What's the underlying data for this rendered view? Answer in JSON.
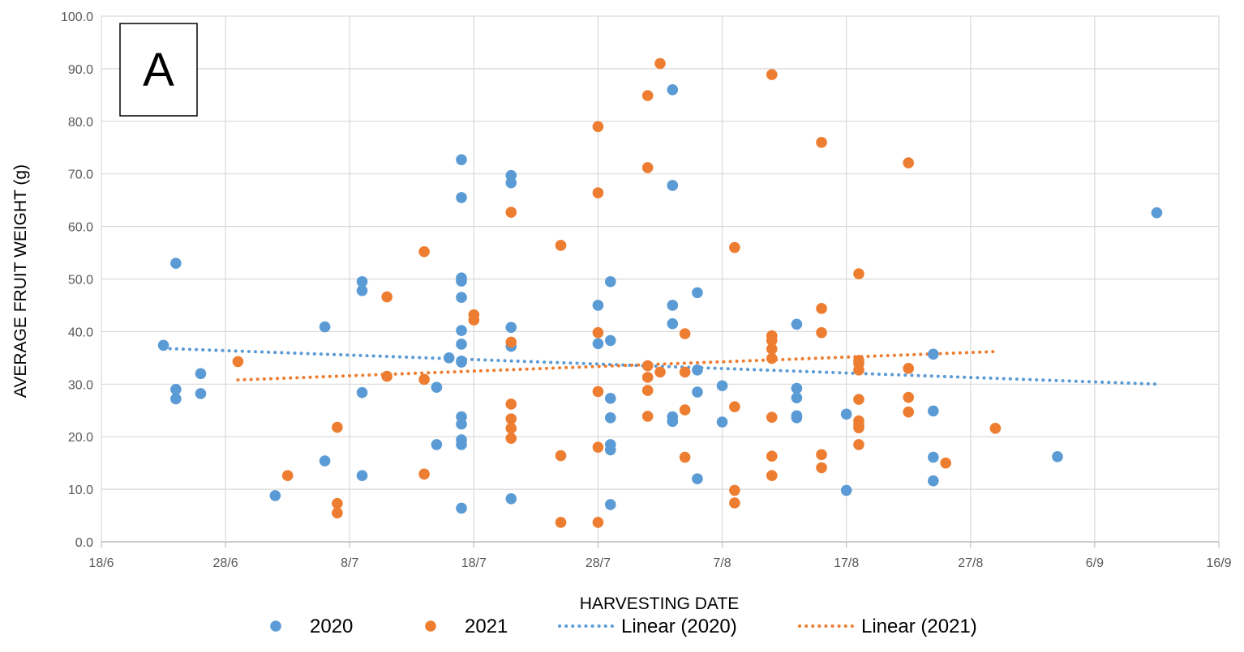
{
  "panel_label": "A",
  "chart_data": {
    "type": "scatter",
    "xlabel": "HARVESTING DATE",
    "ylabel": "AVERAGE FRUIT WEIGHT (g)",
    "xlim": [
      "18/6",
      "16/9"
    ],
    "ylim": [
      0,
      100
    ],
    "x_ticks": [
      "18/6",
      "28/6",
      "8/7",
      "18/7",
      "28/7",
      "7/8",
      "17/8",
      "27/8",
      "6/9",
      "16/9"
    ],
    "y_ticks": [
      "0.0",
      "10.0",
      "20.0",
      "30.0",
      "40.0",
      "50.0",
      "60.0",
      "70.0",
      "80.0",
      "90.0",
      "100.0"
    ],
    "grid": true,
    "legend_position": "bottom",
    "series": [
      {
        "name": "2020",
        "kind": "points",
        "color": "#5B9BD5",
        "points": [
          [
            "23/6",
            37.4
          ],
          [
            "24/6",
            53.0
          ],
          [
            "24/6",
            29.0
          ],
          [
            "24/6",
            27.2
          ],
          [
            "26/6",
            32.0
          ],
          [
            "26/6",
            28.2
          ],
          [
            "2/7",
            8.8
          ],
          [
            "6/7",
            40.9
          ],
          [
            "6/7",
            15.4
          ],
          [
            "9/7",
            49.5
          ],
          [
            "9/7",
            47.8
          ],
          [
            "9/7",
            28.4
          ],
          [
            "9/7",
            12.6
          ],
          [
            "15/7",
            29.4
          ],
          [
            "15/7",
            18.5
          ],
          [
            "16/7",
            35.0
          ],
          [
            "17/7",
            72.7
          ],
          [
            "17/7",
            65.5
          ],
          [
            "17/7",
            50.2
          ],
          [
            "17/7",
            49.6
          ],
          [
            "17/7",
            46.5
          ],
          [
            "17/7",
            40.2
          ],
          [
            "17/7",
            37.6
          ],
          [
            "17/7",
            34.4
          ],
          [
            "17/7",
            34.2
          ],
          [
            "17/7",
            23.8
          ],
          [
            "17/7",
            22.4
          ],
          [
            "17/7",
            19.4
          ],
          [
            "17/7",
            18.5
          ],
          [
            "17/7",
            6.4
          ],
          [
            "21/7",
            69.7
          ],
          [
            "21/7",
            68.3
          ],
          [
            "21/7",
            40.8
          ],
          [
            "21/7",
            37.2
          ],
          [
            "21/7",
            8.2
          ],
          [
            "28/7",
            45.0
          ],
          [
            "28/7",
            37.7
          ],
          [
            "29/7",
            49.5
          ],
          [
            "29/7",
            38.3
          ],
          [
            "29/7",
            27.3
          ],
          [
            "29/7",
            23.6
          ],
          [
            "29/7",
            18.5
          ],
          [
            "29/7",
            17.5
          ],
          [
            "29/7",
            7.1
          ],
          [
            "3/8",
            86.0
          ],
          [
            "3/8",
            67.8
          ],
          [
            "3/8",
            45.0
          ],
          [
            "3/8",
            41.5
          ],
          [
            "3/8",
            23.8
          ],
          [
            "3/8",
            22.9
          ],
          [
            "5/8",
            47.4
          ],
          [
            "5/8",
            32.7
          ],
          [
            "5/8",
            28.5
          ],
          [
            "5/8",
            12.0
          ],
          [
            "7/8",
            29.7
          ],
          [
            "7/8",
            22.8
          ],
          [
            "13/8",
            41.4
          ],
          [
            "13/8",
            29.2
          ],
          [
            "13/8",
            27.4
          ],
          [
            "13/8",
            24.0
          ],
          [
            "13/8",
            23.6
          ],
          [
            "17/8",
            24.3
          ],
          [
            "17/8",
            9.8
          ],
          [
            "24/8",
            35.7
          ],
          [
            "24/8",
            24.9
          ],
          [
            "24/8",
            16.1
          ],
          [
            "24/8",
            11.6
          ],
          [
            "3/9",
            16.2
          ],
          [
            "11/9",
            62.6
          ]
        ]
      },
      {
        "name": "2021",
        "kind": "points",
        "color": "#ED7D31",
        "points": [
          [
            "29/6",
            34.3
          ],
          [
            "3/7",
            12.6
          ],
          [
            "7/7",
            21.8
          ],
          [
            "7/7",
            7.3
          ],
          [
            "7/7",
            5.5
          ],
          [
            "11/7",
            46.6
          ],
          [
            "11/7",
            31.5
          ],
          [
            "14/7",
            55.2
          ],
          [
            "14/7",
            30.9
          ],
          [
            "14/7",
            12.9
          ],
          [
            "18/7",
            43.2
          ],
          [
            "18/7",
            42.2
          ],
          [
            "21/7",
            62.7
          ],
          [
            "21/7",
            38.0
          ],
          [
            "21/7",
            26.2
          ],
          [
            "21/7",
            23.4
          ],
          [
            "21/7",
            21.6
          ],
          [
            "21/7",
            19.7
          ],
          [
            "25/7",
            56.4
          ],
          [
            "25/7",
            16.4
          ],
          [
            "25/7",
            3.7
          ],
          [
            "28/7",
            79.0
          ],
          [
            "28/7",
            66.4
          ],
          [
            "28/7",
            39.8
          ],
          [
            "28/7",
            28.6
          ],
          [
            "28/7",
            18.0
          ],
          [
            "28/7",
            3.7
          ],
          [
            "1/8",
            84.9
          ],
          [
            "1/8",
            71.2
          ],
          [
            "1/8",
            33.5
          ],
          [
            "1/8",
            31.3
          ],
          [
            "1/8",
            28.8
          ],
          [
            "1/8",
            23.9
          ],
          [
            "2/8",
            91.0
          ],
          [
            "2/8",
            32.3
          ],
          [
            "4/8",
            39.6
          ],
          [
            "4/8",
            32.3
          ],
          [
            "4/8",
            25.1
          ],
          [
            "4/8",
            16.1
          ],
          [
            "8/8",
            56.0
          ],
          [
            "8/8",
            25.7
          ],
          [
            "8/8",
            9.8
          ],
          [
            "8/8",
            7.4
          ],
          [
            "11/8",
            88.9
          ],
          [
            "11/8",
            39.2
          ],
          [
            "11/8",
            38.3
          ],
          [
            "11/8",
            36.7
          ],
          [
            "11/8",
            34.9
          ],
          [
            "11/8",
            23.7
          ],
          [
            "11/8",
            16.3
          ],
          [
            "11/8",
            12.6
          ],
          [
            "15/8",
            76.0
          ],
          [
            "15/8",
            44.4
          ],
          [
            "15/8",
            39.8
          ],
          [
            "15/8",
            16.6
          ],
          [
            "15/8",
            14.1
          ],
          [
            "18/8",
            51.0
          ],
          [
            "18/8",
            34.5
          ],
          [
            "18/8",
            33.9
          ],
          [
            "18/8",
            32.7
          ],
          [
            "18/8",
            27.1
          ],
          [
            "18/8",
            23.0
          ],
          [
            "18/8",
            22.3
          ],
          [
            "18/8",
            21.7
          ],
          [
            "18/8",
            18.5
          ],
          [
            "22/8",
            72.1
          ],
          [
            "22/8",
            33.0
          ],
          [
            "22/8",
            27.5
          ],
          [
            "22/8",
            24.7
          ],
          [
            "25/8",
            15.0
          ],
          [
            "29/8",
            21.6
          ]
        ]
      },
      {
        "name": "Linear (2020)",
        "kind": "trendline",
        "color": "#5B9BD5",
        "from": [
          "23/6",
          36.8
        ],
        "to": [
          "11/9",
          30.0
        ]
      },
      {
        "name": "Linear (2021)",
        "kind": "trendline",
        "color": "#ED7D31",
        "from": [
          "29/6",
          30.8
        ],
        "to": [
          "29/8",
          36.2
        ]
      }
    ]
  }
}
